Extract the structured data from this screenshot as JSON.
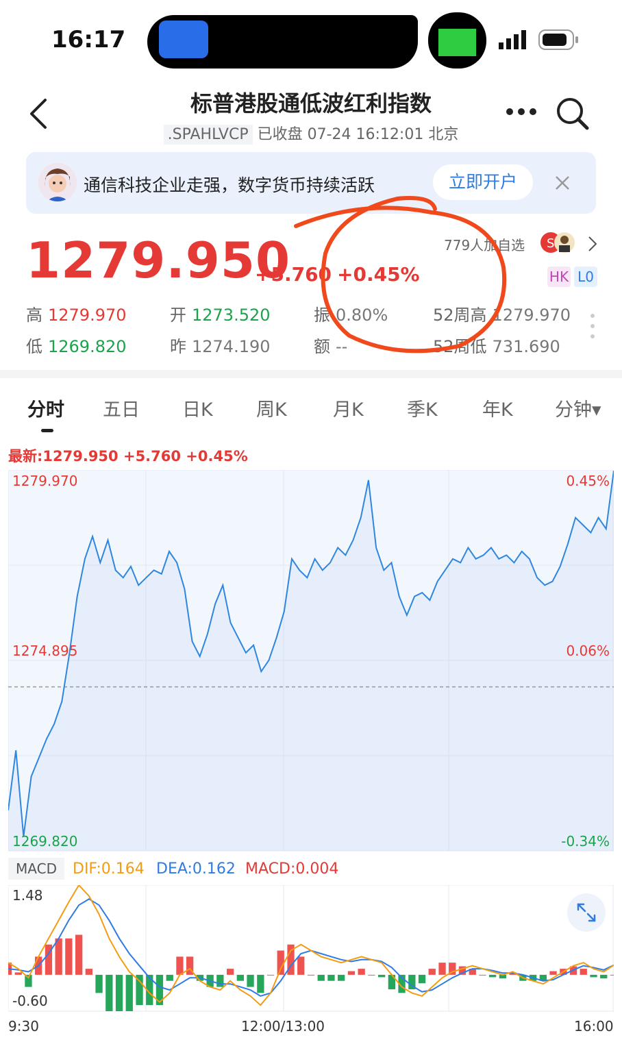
{
  "status_bar": {
    "time": "16:17"
  },
  "header": {
    "title": "标普港股通低波红利指数",
    "code": ".SPAHLVCP",
    "status": "已收盘 07-24 16:12:01 北京"
  },
  "banner": {
    "text": "通信科技企业走强，数字货币持续活跃",
    "button": "立即开户"
  },
  "quote": {
    "price": "1279.950",
    "change": "+5.760",
    "change_pct": "+0.45%",
    "watchers": "779人加自选",
    "badges": [
      "HK",
      "L0"
    ]
  },
  "stats": [
    {
      "label": "高",
      "value": "1279.970",
      "color": "red"
    },
    {
      "label": "开",
      "value": "1273.520",
      "color": "green"
    },
    {
      "label": "振",
      "value": "0.80%",
      "color": "gray"
    },
    {
      "label": "52周高",
      "value": "1279.970",
      "color": "gray"
    },
    {
      "label": "低",
      "value": "1269.820",
      "color": "green"
    },
    {
      "label": "昨",
      "value": "1274.190",
      "color": "gray"
    },
    {
      "label": "额",
      "value": "--",
      "color": "gray"
    },
    {
      "label": "52周低",
      "value": "731.690",
      "color": "gray"
    }
  ],
  "tabs": [
    "分时",
    "五日",
    "日K",
    "周K",
    "月K",
    "季K",
    "年K",
    "分钟▾"
  ],
  "chart_info": "最新:1279.950  +5.760  +0.45%",
  "chart_data": [
    {
      "type": "line",
      "title": "分时",
      "x_labels": [
        "9:30",
        "12:00/13:00",
        "16:00"
      ],
      "y_left": [
        "1279.970",
        "1274.895",
        "1269.820"
      ],
      "y_right": [
        "0.45%",
        "0.06%",
        "-0.34%"
      ],
      "ylim": [
        1269.82,
        1279.97
      ],
      "prev_close": 1274.19,
      "series": [
        {
          "values": [
            1270.9,
            1272.5,
            1270.2,
            1271.8,
            1272.3,
            1272.8,
            1273.2,
            1273.8,
            1275.1,
            1276.6,
            1277.6,
            1278.2,
            1277.5,
            1278.1,
            1277.3,
            1277.1,
            1277.4,
            1276.9,
            1277.1,
            1277.3,
            1277.2,
            1277.8,
            1277.5,
            1276.8,
            1275.4,
            1275.0,
            1275.6,
            1276.4,
            1276.9,
            1275.9,
            1275.5,
            1275.1,
            1275.3,
            1274.6,
            1274.9,
            1275.5,
            1276.2,
            1277.6,
            1277.3,
            1277.1,
            1277.6,
            1277.3,
            1277.5,
            1277.9,
            1277.7,
            1278.1,
            1278.7,
            1279.7,
            1277.9,
            1277.3,
            1277.5,
            1276.6,
            1276.1,
            1276.6,
            1276.7,
            1276.5,
            1277.0,
            1277.3,
            1277.6,
            1277.5,
            1277.9,
            1277.6,
            1277.7,
            1277.9,
            1277.6,
            1277.7,
            1277.5,
            1277.8,
            1277.6,
            1277.1,
            1276.9,
            1277.0,
            1277.4,
            1278.0,
            1278.7,
            1278.5,
            1278.3,
            1278.7,
            1278.4,
            1279.95
          ]
        }
      ]
    },
    {
      "type": "bar",
      "title": "MACD",
      "legend": [
        "DIF:0.164",
        "DEA:0.162",
        "MACD:0.004"
      ],
      "y_labels": [
        "1.48",
        "-0.60"
      ],
      "ylim": [
        -0.6,
        1.48
      ],
      "dif": [
        0.2,
        0.1,
        -0.05,
        0.3,
        0.6,
        0.9,
        1.2,
        1.48,
        1.3,
        1.0,
        0.6,
        0.3,
        0.05,
        -0.1,
        -0.3,
        -0.45,
        -0.3,
        0.0,
        0.1,
        -0.1,
        -0.2,
        -0.25,
        -0.1,
        -0.25,
        -0.35,
        -0.5,
        -0.3,
        0.1,
        0.4,
        0.5,
        0.4,
        0.3,
        0.25,
        0.2,
        0.25,
        0.3,
        0.25,
        0.2,
        0.0,
        -0.2,
        -0.3,
        -0.35,
        -0.2,
        -0.05,
        0.05,
        0.1,
        0.15,
        0.1,
        0.05,
        0.0,
        0.05,
        -0.05,
        -0.1,
        -0.15,
        -0.05,
        0.05,
        0.15,
        0.2,
        0.1,
        0.05,
        0.16
      ],
      "dea": [
        0.1,
        0.08,
        0.05,
        0.15,
        0.35,
        0.6,
        0.9,
        1.15,
        1.25,
        1.15,
        0.9,
        0.6,
        0.35,
        0.15,
        -0.05,
        -0.2,
        -0.25,
        -0.15,
        -0.05,
        -0.05,
        -0.1,
        -0.15,
        -0.15,
        -0.2,
        -0.25,
        -0.35,
        -0.3,
        -0.1,
        0.15,
        0.35,
        0.4,
        0.35,
        0.3,
        0.25,
        0.22,
        0.25,
        0.25,
        0.22,
        0.12,
        -0.05,
        -0.18,
        -0.28,
        -0.25,
        -0.15,
        -0.05,
        0.03,
        0.1,
        0.1,
        0.07,
        0.03,
        0.03,
        0.0,
        -0.05,
        -0.1,
        -0.08,
        0.0,
        0.08,
        0.15,
        0.12,
        0.08,
        0.16
      ]
    }
  ]
}
